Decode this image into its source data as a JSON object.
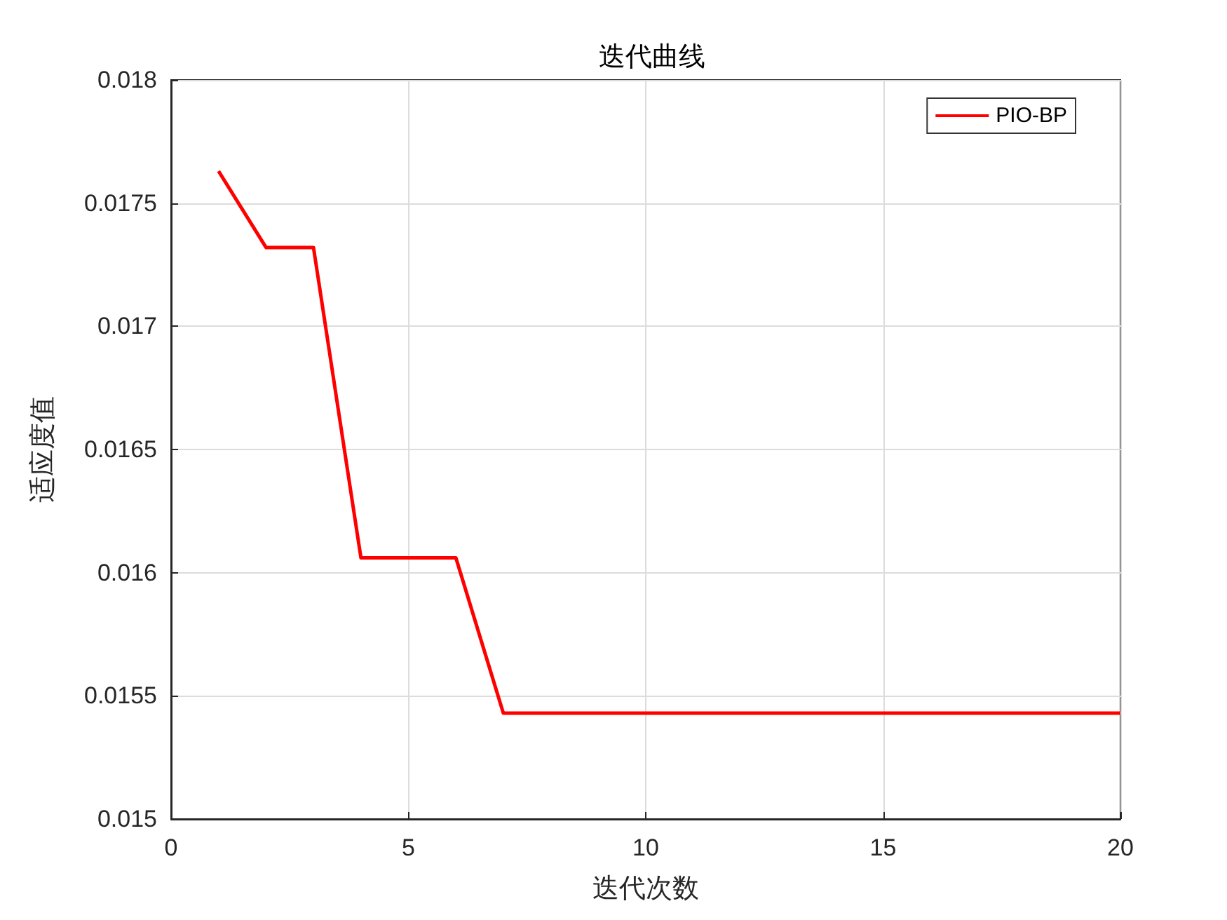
{
  "chart_data": {
    "type": "line",
    "title": "迭代曲线",
    "xlabel": "迭代次数",
    "ylabel": "适应度值",
    "x": [
      1,
      2,
      3,
      4,
      5,
      6,
      7,
      8,
      9,
      10,
      11,
      12,
      13,
      14,
      15,
      16,
      17,
      18,
      19,
      20
    ],
    "series": [
      {
        "name": "PIO-BP",
        "color": "#ff0000",
        "values": [
          0.01763,
          0.01732,
          0.01732,
          0.01606,
          0.01606,
          0.01606,
          0.01543,
          0.01543,
          0.01543,
          0.01543,
          0.01543,
          0.01543,
          0.01543,
          0.01543,
          0.01543,
          0.01543,
          0.01543,
          0.01543,
          0.01543,
          0.01543
        ]
      }
    ],
    "xlim": [
      0,
      20
    ],
    "xticks": [
      0,
      5,
      10,
      15,
      20
    ],
    "ylim": [
      0.015,
      0.018
    ],
    "yticks": [
      0.015,
      0.0155,
      0.016,
      0.0165,
      0.017,
      0.0175,
      0.018
    ],
    "grid": true,
    "legend": "top right",
    "marker": "none",
    "line_style": "solid"
  }
}
